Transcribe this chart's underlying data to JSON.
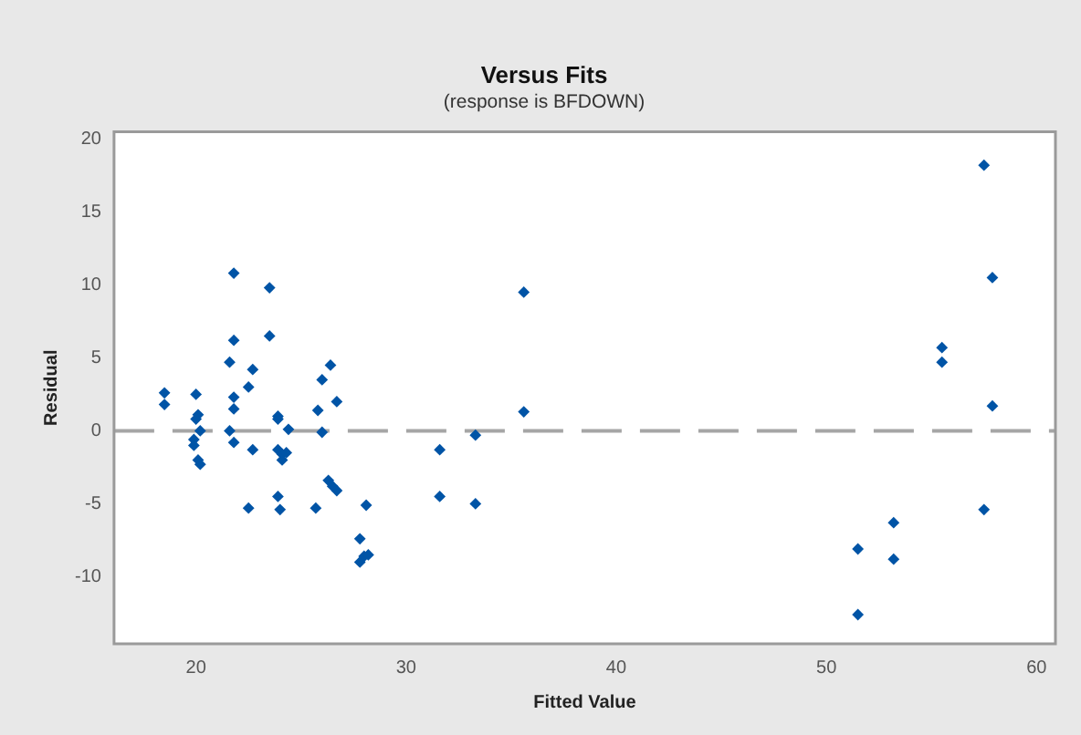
{
  "chart_data": {
    "type": "scatter",
    "title": "Versus Fits",
    "subtitle": "(response is BFDOWN)",
    "xlabel": "Fitted Value",
    "ylabel": "Residual",
    "xlim": [
      16.1,
      60.9
    ],
    "xticks": [
      20,
      30,
      40,
      50,
      60
    ],
    "ylim": [
      -14.6,
      20.5
    ],
    "yticks": [
      -10,
      -5,
      0,
      5,
      10,
      15,
      20
    ],
    "grid": false,
    "legend": false,
    "marker": "diamond",
    "ref_lines": [
      {
        "axis": "y",
        "value": 0,
        "color": "#a6a6a6",
        "line_style": "dashed"
      }
    ],
    "series": [
      {
        "color": "#0054a6",
        "x": [
          18.5,
          18.5,
          20.0,
          20.1,
          20.0,
          20.2,
          19.9,
          19.9,
          20.1,
          20.2,
          21.6,
          21.8,
          21.8,
          21.8,
          21.8,
          21.6,
          21.8,
          22.5,
          22.7,
          22.7,
          22.5,
          23.5,
          23.5,
          23.9,
          23.9,
          23.9,
          24.1,
          24.3,
          24.1,
          23.9,
          24.0,
          24.4,
          25.8,
          26.0,
          26.4,
          26.0,
          25.7,
          26.3,
          26.5,
          26.7,
          26.7,
          27.8,
          27.8,
          28.0,
          28.2,
          28.1,
          31.6,
          31.6,
          33.3,
          33.3,
          35.6,
          35.6,
          57.5,
          57.9,
          55.5,
          55.5,
          57.9,
          57.5,
          51.5,
          53.2,
          53.2,
          51.5
        ],
        "values": [
          2.6,
          1.8,
          2.5,
          1.1,
          0.8,
          0.0,
          -0.6,
          -1.0,
          -2.0,
          -2.3,
          4.7,
          6.2,
          10.8,
          2.3,
          1.5,
          0.0,
          -0.8,
          3.0,
          4.2,
          -1.3,
          -5.3,
          9.8,
          6.5,
          1.0,
          0.8,
          -1.3,
          -1.6,
          -1.5,
          -2.0,
          -4.5,
          -5.4,
          0.1,
          1.4,
          3.5,
          4.5,
          -0.1,
          -5.3,
          -3.4,
          -3.8,
          -4.1,
          2.0,
          -7.4,
          -9.0,
          -8.6,
          -8.5,
          -5.1,
          -1.3,
          -4.5,
          -0.3,
          -5.0,
          9.5,
          1.3,
          18.2,
          10.5,
          5.7,
          4.7,
          1.7,
          -5.4,
          -8.1,
          -6.3,
          -8.8,
          -12.6
        ]
      }
    ]
  }
}
